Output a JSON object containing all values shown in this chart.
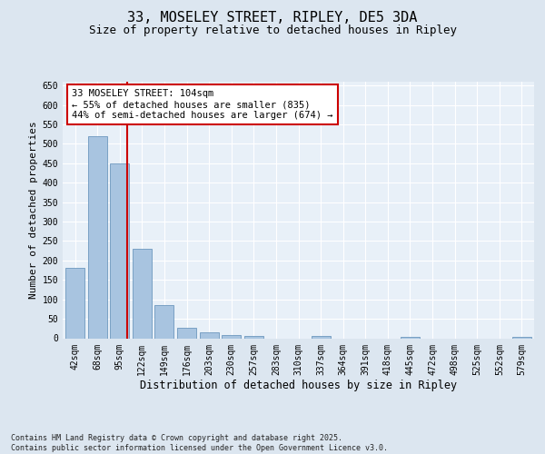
{
  "title": "33, MOSELEY STREET, RIPLEY, DE5 3DA",
  "subtitle": "Size of property relative to detached houses in Ripley",
  "xlabel": "Distribution of detached houses by size in Ripley",
  "ylabel": "Number of detached properties",
  "categories": [
    "42sqm",
    "68sqm",
    "95sqm",
    "122sqm",
    "149sqm",
    "176sqm",
    "203sqm",
    "230sqm",
    "257sqm",
    "283sqm",
    "310sqm",
    "337sqm",
    "364sqm",
    "391sqm",
    "418sqm",
    "445sqm",
    "472sqm",
    "498sqm",
    "525sqm",
    "552sqm",
    "579sqm"
  ],
  "values": [
    180,
    520,
    450,
    230,
    85,
    27,
    15,
    8,
    6,
    0,
    0,
    6,
    0,
    0,
    0,
    4,
    0,
    0,
    0,
    0,
    4
  ],
  "bar_color": "#a8c4e0",
  "bar_edge_color": "#5a8ab5",
  "vline_x_index": 2.35,
  "vline_color": "#cc0000",
  "annotation_line1": "33 MOSELEY STREET: 104sqm",
  "annotation_line2": "← 55% of detached houses are smaller (835)",
  "annotation_line3": "44% of semi-detached houses are larger (674) →",
  "annotation_box_color": "#ffffff",
  "annotation_box_edge_color": "#cc0000",
  "ylim": [
    0,
    660
  ],
  "yticks": [
    0,
    50,
    100,
    150,
    200,
    250,
    300,
    350,
    400,
    450,
    500,
    550,
    600,
    650
  ],
  "bg_color": "#dce6f0",
  "plot_bg_color": "#e8f0f8",
  "footer_text": "Contains HM Land Registry data © Crown copyright and database right 2025.\nContains public sector information licensed under the Open Government Licence v3.0.",
  "title_fontsize": 11,
  "subtitle_fontsize": 9,
  "xlabel_fontsize": 8.5,
  "ylabel_fontsize": 8,
  "tick_fontsize": 7,
  "annotation_fontsize": 7.5,
  "footer_fontsize": 6
}
